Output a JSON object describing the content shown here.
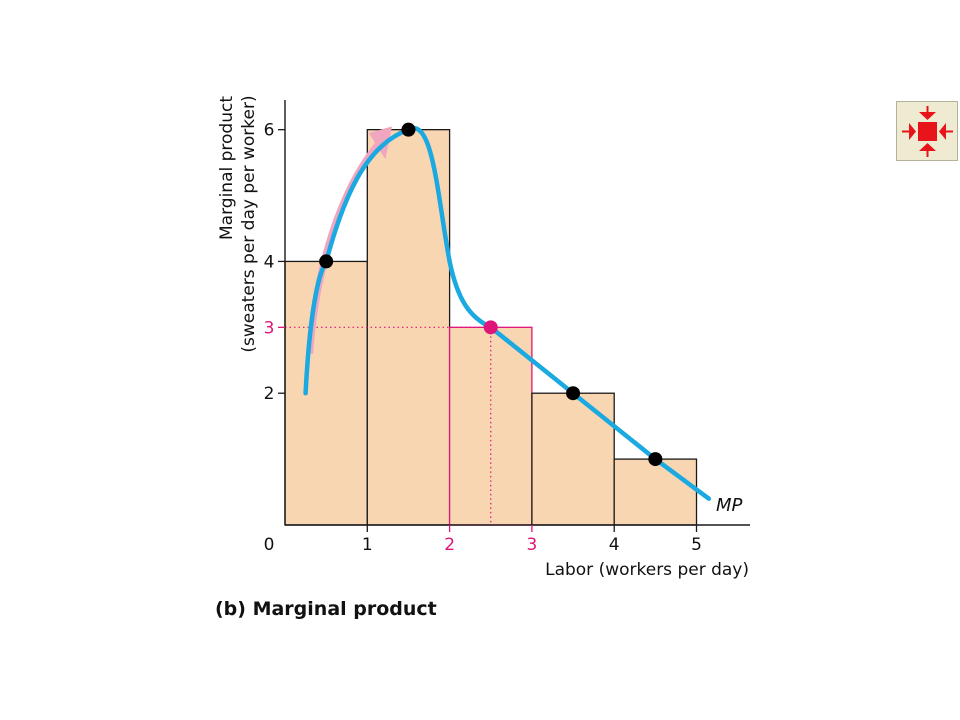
{
  "chart_data": {
    "type": "bar",
    "bar_x_edges": [
      0,
      1,
      2,
      3,
      4,
      5
    ],
    "bar_values": [
      4,
      6,
      3,
      2,
      1
    ],
    "highlighted_bar_index": 2,
    "xlim": [
      0,
      5.65
    ],
    "ylim": [
      0,
      6.45
    ],
    "x_ticks": [
      {
        "value": 0,
        "label": "0",
        "highlight": false
      },
      {
        "value": 1,
        "label": "1",
        "highlight": false
      },
      {
        "value": 2,
        "label": "2",
        "highlight": true
      },
      {
        "value": 3,
        "label": "3",
        "highlight": true
      },
      {
        "value": 4,
        "label": "4",
        "highlight": false
      },
      {
        "value": 5,
        "label": "5",
        "highlight": false
      }
    ],
    "y_ticks": [
      {
        "value": 2,
        "label": "2",
        "highlight": false
      },
      {
        "value": 3,
        "label": "3",
        "highlight": true
      },
      {
        "value": 4,
        "label": "4",
        "highlight": false
      },
      {
        "value": 6,
        "label": "6",
        "highlight": false
      }
    ],
    "xlabel": "Labor (workers per day)",
    "ylabel_line1": "Marginal product",
    "ylabel_line2": "(sweaters per day per worker)",
    "curve_label": "MP",
    "points": [
      {
        "x": 0.5,
        "y": 4,
        "highlight": false
      },
      {
        "x": 1.5,
        "y": 6,
        "highlight": false
      },
      {
        "x": 2.5,
        "y": 3,
        "highlight": true
      },
      {
        "x": 3.5,
        "y": 2,
        "highlight": false
      },
      {
        "x": 4.5,
        "y": 1,
        "highlight": false
      }
    ],
    "highlight_point": {
      "x": 2.5,
      "y": 3
    },
    "colors": {
      "bar_fill": "#f9d6b2",
      "bar_stroke": "#1a1a1a",
      "highlight": "#e0157a",
      "curve": "#1aa9e0",
      "arrow": "#f0a5c0",
      "point": "#000000",
      "axis": "#1a1a1a"
    }
  },
  "caption": "(b) Marginal product",
  "nav_button": {
    "icon": "collapse-arrows-icon",
    "color": "#e8141c"
  }
}
